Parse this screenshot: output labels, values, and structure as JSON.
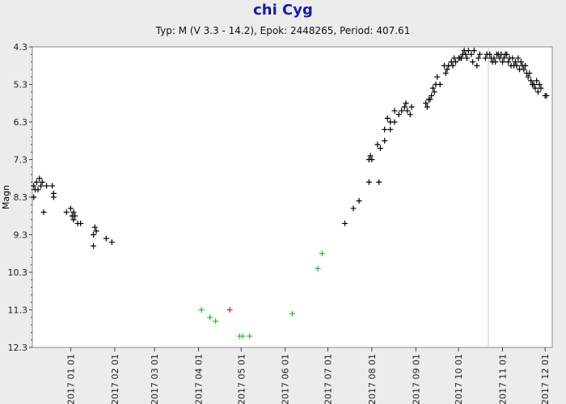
{
  "chart_data": {
    "type": "scatter",
    "title": "chi Cyg",
    "subtitle": "Typ: M (V 3.3 - 14.2), Epok: 2448265, Period: 407.61",
    "ylabel": "Magn",
    "y_inverted": true,
    "ylim": [
      4.3,
      12.3
    ],
    "yticks": [
      "4.3",
      "5.3",
      "6.3",
      "7.3",
      "8.3",
      "9.3",
      "10.3",
      "11.3",
      "12.3"
    ],
    "xlim": [
      "2016-12-05",
      "2017-12-06"
    ],
    "xticks": [
      "2017 01 01",
      "2017 02 01",
      "2017 03 01",
      "2017 04 01",
      "2017 05 01",
      "2017 06 01",
      "2017 07 01",
      "2017 08 01",
      "2017 09 01",
      "2017 10 01",
      "2017 11 01",
      "2017 12 01"
    ],
    "grid": false,
    "colors": {
      "visual": "#000000",
      "green": "#2db52d",
      "red": "#d42020",
      "axis": "#888888",
      "plot_bg": "#ffffff"
    },
    "series": [
      {
        "color": "black",
        "points": [
          [
            "2016-12-06",
            8.0
          ],
          [
            "2016-12-06",
            8.3
          ],
          [
            "2016-12-07",
            8.1
          ],
          [
            "2016-12-08",
            7.9
          ],
          [
            "2016-12-09",
            8.1
          ],
          [
            "2016-12-10",
            7.8
          ],
          [
            "2016-12-11",
            8.0
          ],
          [
            "2016-12-12",
            7.9
          ],
          [
            "2016-12-13",
            8.7
          ],
          [
            "2016-12-15",
            8.0
          ],
          [
            "2016-12-19",
            8.0
          ],
          [
            "2016-12-20",
            8.2
          ],
          [
            "2016-12-20",
            8.3
          ],
          [
            "2016-12-29",
            8.7
          ],
          [
            "2017-01-01",
            8.6
          ],
          [
            "2017-01-02",
            8.8
          ],
          [
            "2017-01-03",
            8.7
          ],
          [
            "2017-01-03",
            8.9
          ],
          [
            "2017-01-04",
            8.8
          ],
          [
            "2017-01-06",
            9.0
          ],
          [
            "2017-01-08",
            9.0
          ],
          [
            "2017-01-17",
            9.3
          ],
          [
            "2017-01-17",
            9.6
          ],
          [
            "2017-01-18",
            9.1
          ],
          [
            "2017-01-19",
            9.2
          ],
          [
            "2017-01-26",
            9.4
          ],
          [
            "2017-01-30",
            9.5
          ],
          [
            "2017-07-13",
            9.0
          ],
          [
            "2017-07-19",
            8.6
          ],
          [
            "2017-07-23",
            8.4
          ],
          [
            "2017-07-30",
            7.3
          ],
          [
            "2017-07-30",
            7.9
          ],
          [
            "2017-07-31",
            7.2
          ],
          [
            "2017-08-01",
            7.3
          ],
          [
            "2017-08-05",
            6.9
          ],
          [
            "2017-08-06",
            7.9
          ],
          [
            "2017-08-07",
            7.0
          ],
          [
            "2017-08-10",
            6.5
          ],
          [
            "2017-08-10",
            6.8
          ],
          [
            "2017-08-12",
            6.2
          ],
          [
            "2017-08-14",
            6.3
          ],
          [
            "2017-08-14",
            6.5
          ],
          [
            "2017-08-17",
            6.3
          ],
          [
            "2017-08-17",
            6.0
          ],
          [
            "2017-08-20",
            6.1
          ],
          [
            "2017-08-22",
            6.0
          ],
          [
            "2017-08-24",
            5.9
          ],
          [
            "2017-08-25",
            5.8
          ],
          [
            "2017-08-26",
            6.0
          ],
          [
            "2017-08-28",
            6.1
          ],
          [
            "2017-08-29",
            5.9
          ],
          [
            "2017-09-08",
            5.8
          ],
          [
            "2017-09-09",
            5.9
          ],
          [
            "2017-09-10",
            5.7
          ],
          [
            "2017-09-11",
            5.7
          ],
          [
            "2017-09-12",
            5.6
          ],
          [
            "2017-09-13",
            5.4
          ],
          [
            "2017-09-14",
            5.5
          ],
          [
            "2017-09-15",
            5.3
          ],
          [
            "2017-09-16",
            5.1
          ],
          [
            "2017-09-18",
            5.3
          ],
          [
            "2017-09-21",
            4.8
          ],
          [
            "2017-09-22",
            5.0
          ],
          [
            "2017-09-23",
            4.9
          ],
          [
            "2017-09-24",
            4.8
          ],
          [
            "2017-09-26",
            4.7
          ],
          [
            "2017-09-27",
            4.8
          ],
          [
            "2017-09-28",
            4.6
          ],
          [
            "2017-09-29",
            4.7
          ],
          [
            "2017-10-01",
            4.6
          ],
          [
            "2017-10-02",
            4.6
          ],
          [
            "2017-10-03",
            4.6
          ],
          [
            "2017-10-04",
            4.5
          ],
          [
            "2017-10-05",
            4.4
          ],
          [
            "2017-10-06",
            4.5
          ],
          [
            "2017-10-07",
            4.6
          ],
          [
            "2017-10-08",
            4.4
          ],
          [
            "2017-10-10",
            4.5
          ],
          [
            "2017-10-11",
            4.7
          ],
          [
            "2017-10-12",
            4.4
          ],
          [
            "2017-10-14",
            4.8
          ],
          [
            "2017-10-15",
            4.6
          ],
          [
            "2017-10-16",
            4.5
          ],
          [
            "2017-10-20",
            4.6
          ],
          [
            "2017-10-21",
            4.5
          ],
          [
            "2017-10-23",
            4.5
          ],
          [
            "2017-10-24",
            4.6
          ],
          [
            "2017-10-25",
            4.7
          ],
          [
            "2017-10-26",
            4.6
          ],
          [
            "2017-10-27",
            4.7
          ],
          [
            "2017-10-28",
            4.5
          ],
          [
            "2017-10-29",
            4.5
          ],
          [
            "2017-10-30",
            4.6
          ],
          [
            "2017-10-31",
            4.5
          ],
          [
            "2017-11-01",
            4.7
          ],
          [
            "2017-11-02",
            4.6
          ],
          [
            "2017-11-03",
            4.5
          ],
          [
            "2017-11-04",
            4.5
          ],
          [
            "2017-11-05",
            4.7
          ],
          [
            "2017-11-06",
            4.6
          ],
          [
            "2017-11-07",
            4.8
          ],
          [
            "2017-11-08",
            4.6
          ],
          [
            "2017-11-09",
            4.8
          ],
          [
            "2017-11-10",
            4.7
          ],
          [
            "2017-11-11",
            4.8
          ],
          [
            "2017-11-12",
            4.6
          ],
          [
            "2017-11-13",
            4.9
          ],
          [
            "2017-11-14",
            4.7
          ],
          [
            "2017-11-15",
            4.8
          ],
          [
            "2017-11-16",
            4.9
          ],
          [
            "2017-11-17",
            4.8
          ],
          [
            "2017-11-18",
            5.0
          ],
          [
            "2017-11-19",
            5.1
          ],
          [
            "2017-11-20",
            5.0
          ],
          [
            "2017-11-21",
            5.2
          ],
          [
            "2017-11-22",
            5.3
          ],
          [
            "2017-11-23",
            5.3
          ],
          [
            "2017-11-24",
            5.4
          ],
          [
            "2017-11-25",
            5.2
          ],
          [
            "2017-11-26",
            5.5
          ],
          [
            "2017-11-27",
            5.3
          ],
          [
            "2017-11-28",
            5.4
          ],
          [
            "2017-12-01",
            5.6
          ],
          [
            "2017-12-02",
            5.6
          ]
        ]
      },
      {
        "color": "green",
        "points": [
          [
            "2017-04-03",
            11.3
          ],
          [
            "2017-04-09",
            11.5
          ],
          [
            "2017-04-13",
            11.6
          ],
          [
            "2017-04-30",
            12.0
          ],
          [
            "2017-05-02",
            12.0
          ],
          [
            "2017-05-07",
            12.0
          ],
          [
            "2017-06-06",
            11.4
          ],
          [
            "2017-06-24",
            10.2
          ],
          [
            "2017-06-27",
            9.8
          ]
        ]
      },
      {
        "color": "red",
        "points": [
          [
            "2017-04-23",
            11.3
          ]
        ]
      }
    ]
  }
}
